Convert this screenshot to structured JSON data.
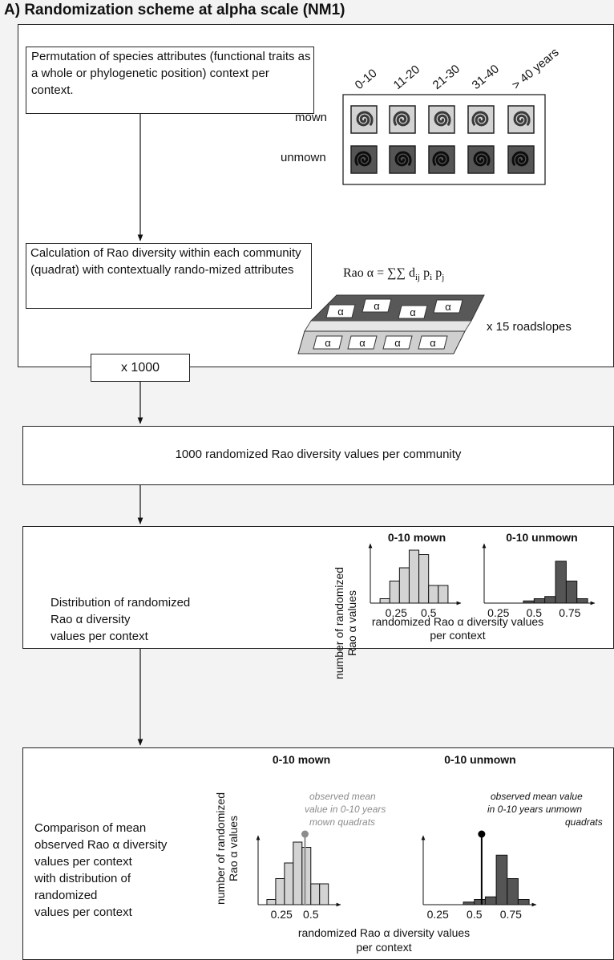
{
  "title": "A) Randomization scheme at alpha scale (NM1)",
  "outer_box": {
    "permutation_text": "Permutation of species attributes (functional traits as a whole or phylogenetic position) context per context.",
    "age_classes": [
      "0-10",
      "11-20",
      "21-30",
      "31-40",
      "> 40 years"
    ],
    "row_labels": {
      "mown": "mown",
      "unmown": "unmown"
    },
    "calculation_text": "Calculation of Rao diversity within each community (quadrat) with contextually rando-mized attributes",
    "formula": {
      "prefix": "Rao α = ∑∑ d",
      "sub1": "ij",
      "p": " p",
      "sub2": "i",
      "p2": " p",
      "sub3": "j"
    },
    "quadrat_symbol": "α",
    "roadslopes": "x 15 roadslopes"
  },
  "repeat_label": "x 1000",
  "randomized_values_text": "1000 randomized Rao diversity values per community",
  "distribution_box": {
    "text": [
      "Distribution of randomized",
      "Rao α diversity",
      "values per context"
    ],
    "ylabel": [
      "number of randomized",
      "Rao α values"
    ],
    "xlabel": [
      "randomized Rao α diversity values",
      "per context"
    ]
  },
  "comparison_box": {
    "text": [
      "Comparison of mean",
      "observed Rao α diversity",
      "values per context",
      "with distribution of",
      "randomized",
      "values per context"
    ],
    "ylabel": [
      "number of randomized",
      "Rao α values"
    ],
    "xlabel": [
      "randomized Rao α diversity values",
      "per context"
    ],
    "obs_mown": [
      "observed mean",
      "value in 0-10 years",
      "mown quadrats"
    ],
    "obs_unmown": [
      "observed mean value",
      "in 0-10 years unmown",
      "quadrats"
    ]
  },
  "colors": {
    "mown": "#d3d3d3",
    "unmown": "#555555",
    "obs_mown": "#8c8c8c",
    "obs_unmown": "#000000"
  },
  "chart_data": [
    {
      "type": "bar",
      "title": "0-10 mown",
      "xticks": [
        "0.25",
        "0.5"
      ],
      "bins": [
        0.125,
        0.2,
        0.275,
        0.35,
        0.425,
        0.5,
        0.575
      ],
      "values": [
        2,
        10,
        16,
        24,
        22,
        8,
        8
      ]
    },
    {
      "type": "bar",
      "title": "0-10 unmown",
      "xticks": [
        "0.25",
        "0.5",
        "0.75"
      ],
      "bins": [
        0.425,
        0.5,
        0.575,
        0.65,
        0.725,
        0.8
      ],
      "values": [
        1,
        2,
        3,
        19,
        10,
        2
      ]
    },
    {
      "type": "bar",
      "title": "0-10 mown",
      "xticks": [
        "0.25",
        "0.5"
      ],
      "bins": [
        0.125,
        0.2,
        0.275,
        0.35,
        0.425,
        0.5,
        0.575
      ],
      "values": [
        2,
        10,
        16,
        24,
        22,
        8,
        8
      ],
      "observed_mean": 0.45
    },
    {
      "type": "bar",
      "title": "0-10 unmown",
      "xticks": [
        "0.25",
        "0.5",
        "0.75"
      ],
      "bins": [
        0.425,
        0.5,
        0.575,
        0.65,
        0.725,
        0.8
      ],
      "values": [
        1,
        2,
        3,
        19,
        10,
        2
      ],
      "observed_mean": 0.55
    }
  ]
}
